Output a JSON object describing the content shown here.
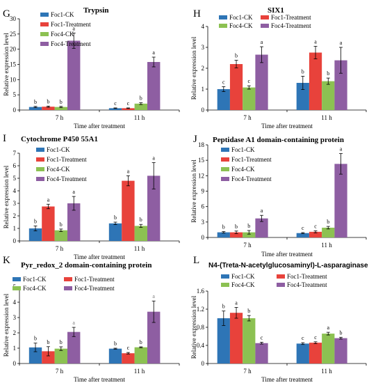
{
  "colors": {
    "Foc1-CK": "#2e75b6",
    "Foc1-Treatment": "#e8423b",
    "Foc4-CK": "#8cc152",
    "Foc4-Treatment": "#8e5ea2"
  },
  "chart_data": [
    {
      "type": "bar",
      "panel": "G",
      "title": "Trypsin",
      "xlabel": "Time after treatment",
      "ylabel": "Relative expression level",
      "categories": [
        "7 h",
        "11 h"
      ],
      "ylim": [
        0,
        30
      ],
      "yticks": [
        0,
        5,
        10,
        15,
        20,
        25,
        30
      ],
      "ytick_labels": [
        "0",
        "5",
        "10",
        "15",
        "20",
        "25",
        "30"
      ],
      "legend": "top-left",
      "series": [
        {
          "name": "Foc1-CK",
          "values": [
            1.0,
            0.6
          ],
          "errors": [
            0.2,
            0.1
          ],
          "letters": [
            "b",
            "c"
          ]
        },
        {
          "name": "Foc1-Treatment",
          "values": [
            1.1,
            0.6
          ],
          "errors": [
            0.2,
            0.1
          ],
          "letters": [
            "b",
            "c"
          ]
        },
        {
          "name": "Foc4-CK",
          "values": [
            1.0,
            2.1
          ],
          "errors": [
            0.2,
            0.3
          ],
          "letters": [
            "b",
            "b"
          ]
        },
        {
          "name": "Foc4-Treatment",
          "values": [
            22.8,
            15.8
          ],
          "errors": [
            2.5,
            1.6
          ],
          "letters": [
            "a",
            "a"
          ]
        }
      ]
    },
    {
      "type": "bar",
      "panel": "H",
      "title": "SIX1",
      "xlabel": "Time after treatment",
      "ylabel": "Relative expression level",
      "categories": [
        "7 h",
        "11 h"
      ],
      "ylim": [
        0,
        4
      ],
      "yticks": [
        0,
        1,
        2,
        3,
        4
      ],
      "ytick_labels": [
        "0",
        "1",
        "2",
        "3",
        "4"
      ],
      "legend": "top",
      "series": [
        {
          "name": "Foc1-CK",
          "values": [
            1.0,
            1.3
          ],
          "errors": [
            0.12,
            0.32
          ],
          "letters": [
            "c",
            "b"
          ]
        },
        {
          "name": "Foc1-Treatment",
          "values": [
            2.2,
            2.75
          ],
          "errors": [
            0.18,
            0.3
          ],
          "letters": [
            "b",
            "a"
          ]
        },
        {
          "name": "Foc4-CK",
          "values": [
            1.08,
            1.38
          ],
          "errors": [
            0.08,
            0.15
          ],
          "letters": [
            "c",
            "b"
          ]
        },
        {
          "name": "Foc4-Treatment",
          "values": [
            2.65,
            2.38
          ],
          "errors": [
            0.38,
            0.62
          ],
          "letters": [
            "a",
            "a"
          ]
        }
      ]
    },
    {
      "type": "bar",
      "panel": "I",
      "title": "Cytochrome P450 55A1",
      "xlabel": "Time after treatment",
      "ylabel": "Relative expression level",
      "categories": [
        "7 h",
        "11 h"
      ],
      "ylim": [
        0,
        7
      ],
      "yticks": [
        0,
        1,
        2,
        3,
        4,
        5,
        6,
        7
      ],
      "ytick_labels": [
        "0",
        "1",
        "2",
        "3",
        "4",
        "5",
        "6",
        "7"
      ],
      "legend": "top-left",
      "series": [
        {
          "name": "Foc1-CK",
          "values": [
            1.0,
            1.4
          ],
          "errors": [
            0.2,
            0.1
          ],
          "letters": [
            "b",
            "b"
          ]
        },
        {
          "name": "Foc1-Treatment",
          "values": [
            2.75,
            4.8
          ],
          "errors": [
            0.18,
            0.4
          ],
          "letters": [
            "a",
            "a"
          ]
        },
        {
          "name": "Foc4-CK",
          "values": [
            0.85,
            1.2
          ],
          "errors": [
            0.1,
            0.12
          ],
          "letters": [
            "b",
            "b"
          ]
        },
        {
          "name": "Foc4-Treatment",
          "values": [
            3.0,
            5.2
          ],
          "errors": [
            0.55,
            1.05
          ],
          "letters": [
            "a",
            "a"
          ]
        }
      ]
    },
    {
      "type": "bar",
      "panel": "J",
      "title": "Peptidase A1 domain-containing protein",
      "xlabel": "Time after treatment",
      "ylabel": "Relative expression level",
      "categories": [
        "7 h",
        "11 h"
      ],
      "ylim": [
        0,
        18
      ],
      "yticks": [
        0,
        3,
        6,
        9,
        12,
        15,
        18
      ],
      "ytick_labels": [
        "0",
        "3",
        "6",
        "9",
        "12",
        "15",
        "18"
      ],
      "legend": "top-left",
      "series": [
        {
          "name": "Foc1-CK",
          "values": [
            1.0,
            0.85
          ],
          "errors": [
            0.15,
            0.1
          ],
          "letters": [
            "b",
            "c"
          ]
        },
        {
          "name": "Foc1-Treatment",
          "values": [
            1.0,
            1.1
          ],
          "errors": [
            0.25,
            0.2
          ],
          "letters": [
            "b",
            "c"
          ]
        },
        {
          "name": "Foc4-CK",
          "values": [
            1.0,
            1.9
          ],
          "errors": [
            0.35,
            0.25
          ],
          "letters": [
            "b",
            "b"
          ]
        },
        {
          "name": "Foc4-Treatment",
          "values": [
            3.7,
            14.3
          ],
          "errors": [
            0.6,
            2.0
          ],
          "letters": [
            "a",
            "a"
          ]
        }
      ]
    },
    {
      "type": "bar",
      "panel": "K",
      "title": "Pyr_redox_2 domain-containing protein",
      "xlabel": "Time after treatment",
      "ylabel": "Relative expression level",
      "categories": [
        "7 h",
        "11 h"
      ],
      "ylim": [
        0,
        5
      ],
      "yticks": [
        0,
        1,
        2,
        3,
        4,
        5
      ],
      "ytick_labels": [
        "0",
        "1",
        "2",
        "3",
        "4",
        "5"
      ],
      "legend": "top",
      "series": [
        {
          "name": "Foc1-CK",
          "values": [
            1.05,
            0.97
          ],
          "errors": [
            0.28,
            0.03
          ],
          "letters": [
            "b",
            "b"
          ]
        },
        {
          "name": "Foc1-Treatment",
          "values": [
            0.8,
            0.67
          ],
          "errors": [
            0.3,
            0.05
          ],
          "letters": [
            "b",
            "c"
          ]
        },
        {
          "name": "Foc4-CK",
          "values": [
            0.97,
            1.06
          ],
          "errors": [
            0.12,
            0.03
          ],
          "letters": [
            "b",
            "b"
          ]
        },
        {
          "name": "Foc4-Treatment",
          "values": [
            2.06,
            3.38
          ],
          "errors": [
            0.3,
            0.7
          ],
          "letters": [
            "a",
            "a"
          ]
        }
      ]
    },
    {
      "type": "bar",
      "panel": "L",
      "title": "N4-(Treta-N-acetylglucosaminyl)-L-asparaginase",
      "xlabel": "Time after treatment",
      "ylabel": "Relative expression level",
      "categories": [
        "7 h",
        "11 h"
      ],
      "ylim": [
        0,
        1.6
      ],
      "yticks": [
        0,
        0.4,
        0.8,
        1.2,
        1.6
      ],
      "ytick_labels": [
        "0",
        "0.4",
        "0.8",
        "1.2",
        "1.6"
      ],
      "legend": "top",
      "series": [
        {
          "name": "Foc1-CK",
          "values": [
            1.0,
            0.44
          ],
          "errors": [
            0.16,
            0.02
          ],
          "letters": [
            "b",
            "c"
          ]
        },
        {
          "name": "Foc1-Treatment",
          "values": [
            1.12,
            0.46
          ],
          "errors": [
            0.12,
            0.02
          ],
          "letters": [
            "a",
            "c"
          ]
        },
        {
          "name": "Foc4-CK",
          "values": [
            1.0,
            0.66
          ],
          "errors": [
            0.06,
            0.03
          ],
          "letters": [
            "b",
            "a"
          ]
        },
        {
          "name": "Foc4-Treatment",
          "values": [
            0.45,
            0.56
          ],
          "errors": [
            0.02,
            0.02
          ],
          "letters": [
            "c",
            "b"
          ]
        }
      ]
    }
  ]
}
